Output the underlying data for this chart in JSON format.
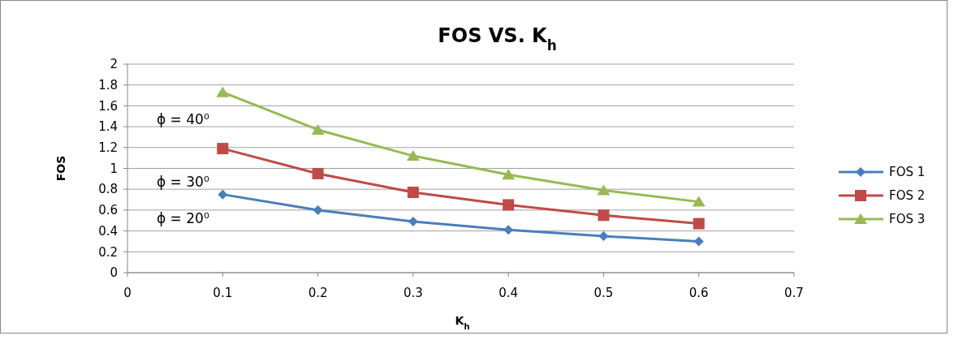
{
  "chart_data": {
    "type": "line",
    "title": "FOS  VS. K$_{h}$",
    "xlabel": "K$_{h}$",
    "ylabel": "FOS",
    "x": [
      0.1,
      0.2,
      0.3,
      0.4,
      0.5,
      0.6
    ],
    "series": [
      {
        "name": "FOS 1",
        "color": "#4a7ebb",
        "marker": "diamond",
        "values": [
          0.75,
          0.6,
          0.49,
          0.41,
          0.35,
          0.3
        ]
      },
      {
        "name": "FOS 2",
        "color": "#be4b48",
        "marker": "square",
        "values": [
          1.19,
          0.95,
          0.77,
          0.65,
          0.55,
          0.47
        ]
      },
      {
        "name": "FOS 3",
        "color": "#98b954",
        "marker": "triangle",
        "values": [
          1.73,
          1.37,
          1.12,
          0.94,
          0.79,
          0.68
        ]
      }
    ],
    "xlim": [
      0,
      0.7
    ],
    "xticks": [
      0,
      0.1,
      0.2,
      0.3,
      0.4,
      0.5,
      0.6,
      0.7
    ],
    "ylim": [
      0,
      2
    ],
    "yticks": [
      0,
      0.2,
      0.4,
      0.6,
      0.8,
      1,
      1.2,
      1.4,
      1.6,
      1.8,
      2
    ],
    "annotations": [
      "ϕ = 40⁰",
      "ϕ = 30⁰",
      "ϕ = 20⁰"
    ],
    "grid": "y",
    "legend": "right",
    "line_style": "solid"
  }
}
